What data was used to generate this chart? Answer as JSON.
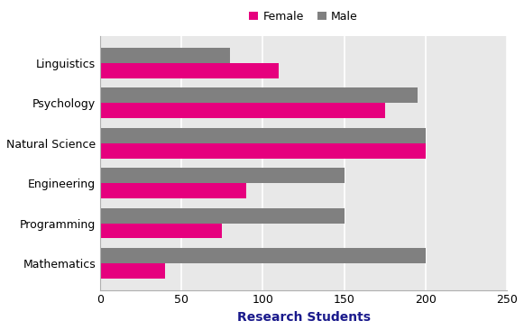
{
  "categories": [
    "Linguistics",
    "Psychology",
    "Natural Science",
    "Engineering",
    "Programming",
    "Mathematics"
  ],
  "female_values": [
    110,
    175,
    200,
    90,
    75,
    40
  ],
  "male_values": [
    80,
    195,
    200,
    150,
    150,
    200
  ],
  "female_color": "#E6007E",
  "male_color": "#808080",
  "xlabel": "Research Students",
  "xlim": [
    0,
    250
  ],
  "xticks": [
    0,
    50,
    100,
    150,
    200,
    250
  ],
  "legend_labels": [
    "Female",
    "Male"
  ],
  "background_color": "#ffffff",
  "plot_bg_color": "#e8e8e8",
  "bar_height": 0.38,
  "axis_fontsize": 10,
  "tick_fontsize": 9,
  "legend_fontsize": 9
}
